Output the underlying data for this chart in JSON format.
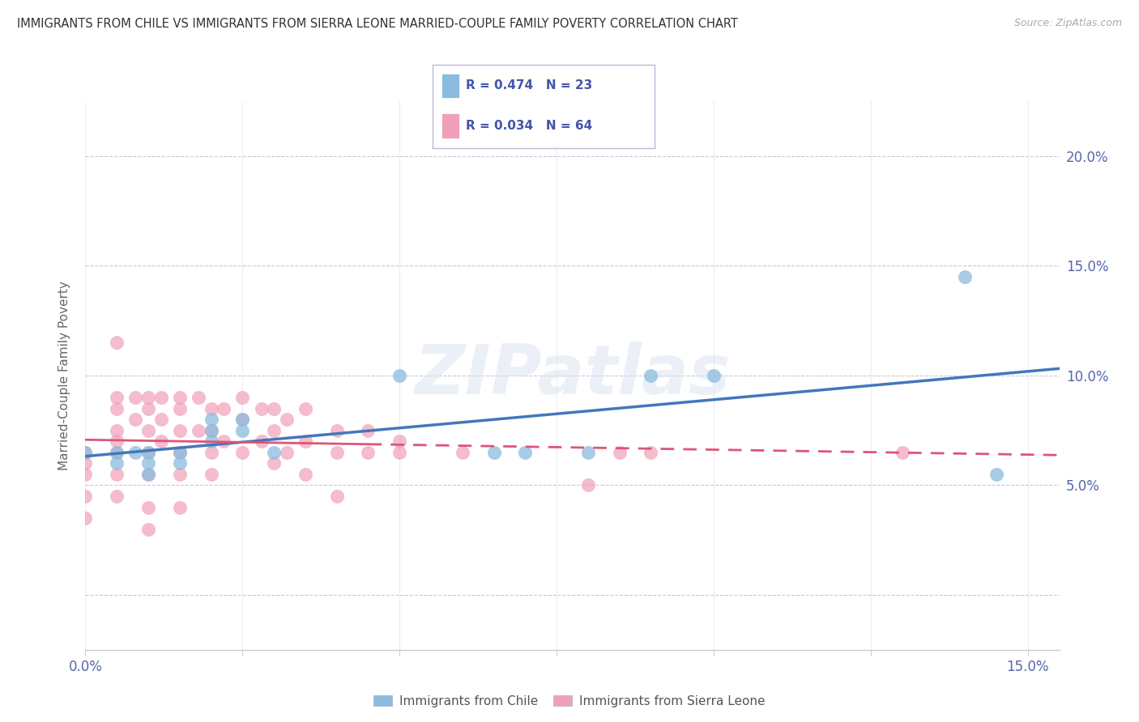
{
  "title": "IMMIGRANTS FROM CHILE VS IMMIGRANTS FROM SIERRA LEONE MARRIED-COUPLE FAMILY POVERTY CORRELATION CHART",
  "source": "Source: ZipAtlas.com",
  "ylabel": "Married-Couple Family Poverty",
  "xlim": [
    0,
    0.155
  ],
  "ylim": [
    -0.025,
    0.225
  ],
  "x_ticks": [
    0.0,
    0.025,
    0.05,
    0.075,
    0.1,
    0.125,
    0.15
  ],
  "x_tick_labels": [
    "0.0%",
    "",
    "",
    "",
    "",
    "",
    "15.0%"
  ],
  "y_ticks": [
    0.0,
    0.05,
    0.1,
    0.15,
    0.2
  ],
  "y_right_labels": [
    "",
    "5.0%",
    "10.0%",
    "15.0%",
    "20.0%"
  ],
  "chile_color": "#8bbcde",
  "sierra_color": "#f0a0b8",
  "chile_line_color": "#4477bb",
  "sierra_line_color": "#dd5577",
  "watermark_text": "ZIPatlas",
  "chile_x": [
    0.0,
    0.005,
    0.005,
    0.008,
    0.01,
    0.01,
    0.01,
    0.015,
    0.015,
    0.02,
    0.02,
    0.02,
    0.025,
    0.025,
    0.03,
    0.05,
    0.065,
    0.07,
    0.08,
    0.09,
    0.1,
    0.14,
    0.145
  ],
  "chile_y": [
    0.065,
    0.065,
    0.06,
    0.065,
    0.065,
    0.06,
    0.055,
    0.065,
    0.06,
    0.08,
    0.075,
    0.07,
    0.08,
    0.075,
    0.065,
    0.1,
    0.065,
    0.065,
    0.065,
    0.1,
    0.1,
    0.145,
    0.055
  ],
  "sierra_x": [
    0.0,
    0.0,
    0.0,
    0.0,
    0.0,
    0.005,
    0.005,
    0.005,
    0.005,
    0.005,
    0.005,
    0.005,
    0.005,
    0.008,
    0.008,
    0.01,
    0.01,
    0.01,
    0.01,
    0.01,
    0.01,
    0.01,
    0.012,
    0.012,
    0.012,
    0.015,
    0.015,
    0.015,
    0.015,
    0.015,
    0.015,
    0.018,
    0.018,
    0.02,
    0.02,
    0.02,
    0.02,
    0.022,
    0.022,
    0.025,
    0.025,
    0.025,
    0.028,
    0.028,
    0.03,
    0.03,
    0.03,
    0.032,
    0.032,
    0.035,
    0.035,
    0.035,
    0.04,
    0.04,
    0.04,
    0.045,
    0.045,
    0.05,
    0.05,
    0.06,
    0.08,
    0.085,
    0.09,
    0.13
  ],
  "sierra_y": [
    0.065,
    0.06,
    0.055,
    0.045,
    0.035,
    0.115,
    0.09,
    0.085,
    0.075,
    0.07,
    0.065,
    0.055,
    0.045,
    0.09,
    0.08,
    0.09,
    0.085,
    0.075,
    0.065,
    0.055,
    0.04,
    0.03,
    0.09,
    0.08,
    0.07,
    0.09,
    0.085,
    0.075,
    0.065,
    0.055,
    0.04,
    0.09,
    0.075,
    0.085,
    0.075,
    0.065,
    0.055,
    0.085,
    0.07,
    0.09,
    0.08,
    0.065,
    0.085,
    0.07,
    0.085,
    0.075,
    0.06,
    0.08,
    0.065,
    0.085,
    0.07,
    0.055,
    0.075,
    0.065,
    0.045,
    0.075,
    0.065,
    0.07,
    0.065,
    0.065,
    0.05,
    0.065,
    0.065,
    0.065
  ]
}
